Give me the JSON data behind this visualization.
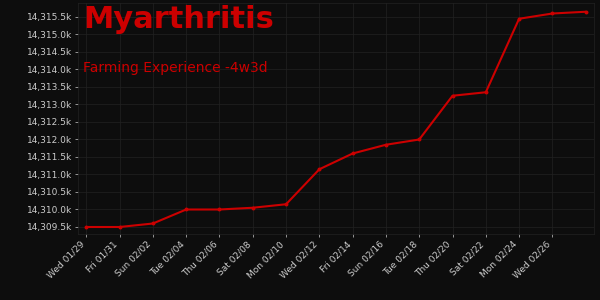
{
  "title": "Myarthritis",
  "subtitle": "Farming Experience -4w3d",
  "background_color": "#0d0d0d",
  "grid_color": "#222222",
  "line_color": "#cc0000",
  "dot_color": "#cc0000",
  "title_color": "#cc0000",
  "subtitle_color": "#cc0000",
  "tick_color": "#cccccc",
  "xlabel_color": "#cccccc",
  "x_labels": [
    "Wed 01/29",
    "Fri 01/31",
    "Sun 02/02",
    "Tue 02/04",
    "Thu 02/06",
    "Sat 02/08",
    "Mon 02/10",
    "Wed 02/12",
    "Fri 02/14",
    "Sun 02/16",
    "Tue 02/18",
    "Thu 02/20",
    "Sat 02/22",
    "Mon 02/24",
    "Wed 02/26"
  ],
  "x_values": [
    0,
    2,
    4,
    6,
    8,
    10,
    12,
    14,
    16,
    18,
    20,
    22,
    24,
    26,
    28
  ],
  "y_data_points": [
    [
      0,
      14309.5
    ],
    [
      2,
      14309.5
    ],
    [
      4,
      14309.6
    ],
    [
      6,
      14310.0
    ],
    [
      8,
      14310.0
    ],
    [
      10,
      14310.05
    ],
    [
      12,
      14310.15
    ],
    [
      14,
      14311.15
    ],
    [
      16,
      14311.6
    ],
    [
      18,
      14311.85
    ],
    [
      20,
      14312.0
    ],
    [
      22,
      14313.25
    ],
    [
      24,
      14313.35
    ],
    [
      26,
      14315.45
    ],
    [
      28,
      14315.6
    ],
    [
      30,
      14315.65
    ]
  ],
  "dot_points_x": [
    0,
    2,
    4,
    6,
    8,
    10,
    12,
    14,
    16,
    18,
    20,
    22,
    24,
    26,
    28,
    30
  ],
  "dot_points_y": [
    14309.5,
    14309.5,
    14309.6,
    14310.0,
    14310.0,
    14310.05,
    14310.15,
    14311.15,
    14311.6,
    14311.85,
    14312.0,
    14313.25,
    14313.35,
    14315.45,
    14315.6,
    14315.65
  ],
  "ylim": [
    14309.3,
    14315.9
  ],
  "xlim": [
    -0.5,
    30.5
  ],
  "ytick_values": [
    14309.5,
    14310.0,
    14310.5,
    14311.0,
    14311.5,
    14312.0,
    14312.5,
    14313.0,
    14313.5,
    14314.0,
    14314.5,
    14315.0,
    14315.5
  ],
  "ytick_labels": [
    "14,309.5k",
    "14,310.0k",
    "14,310.5k",
    "14,311.0k",
    "14,311.5k",
    "14,312.0k",
    "14,312.5k",
    "14,313.0k",
    "14,313.5k",
    "14,314.0k",
    "14,314.5k",
    "14,315.0k",
    "14,315.5k"
  ],
  "title_fontsize": 22,
  "subtitle_fontsize": 10,
  "tick_fontsize": 6.5,
  "xlabel_fontsize": 6.5
}
